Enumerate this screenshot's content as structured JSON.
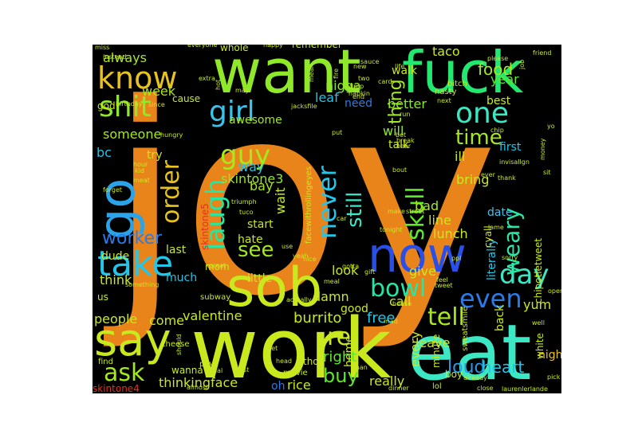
{
  "words": [
    {
      "text": "joy",
      "color": "#e8841a"
    },
    {
      "text": "work",
      "color": "#c9e81e"
    },
    {
      "text": "eat",
      "color": "#3ce8c4"
    },
    {
      "text": "want",
      "color": "#8fe829"
    },
    {
      "text": "fuck",
      "color": "#22e870"
    },
    {
      "text": "sob",
      "color": "#c9e81e"
    },
    {
      "text": "now",
      "color": "#2a4fe8"
    },
    {
      "text": "go",
      "color": "#2aa3e8"
    },
    {
      "text": "say",
      "color": "#c9e81e"
    },
    {
      "text": "take",
      "color": "#22c6e8"
    },
    {
      "text": "know",
      "color": "#e8c21e"
    },
    {
      "text": "shit",
      "color": "#8fe829"
    },
    {
      "text": "girl",
      "color": "#3cc2e8"
    },
    {
      "text": "guy",
      "color": "#a6e81e"
    },
    {
      "text": "laugh",
      "color": "#22e8a4"
    },
    {
      "text": "never",
      "color": "#22c6e8"
    },
    {
      "text": "skull",
      "color": "#5fe829"
    },
    {
      "text": "order",
      "color": "#e8c21e"
    },
    {
      "text": "one",
      "color": "#3ce8c4"
    },
    {
      "text": "day",
      "color": "#3ce8c4"
    },
    {
      "text": "even",
      "color": "#2a7ae8"
    },
    {
      "text": "tell",
      "color": "#a6e81e"
    },
    {
      "text": "bowl",
      "color": "#22e8a4"
    },
    {
      "text": "ask",
      "color": "#a6e81e"
    },
    {
      "text": "weary",
      "color": "#2ae8a4"
    },
    {
      "text": "time",
      "color": "#a6e81e"
    },
    {
      "text": "see",
      "color": "#a6e81e"
    },
    {
      "text": "still",
      "color": "#3ce8c4"
    },
    {
      "text": "thing",
      "color": "#a6e81e"
    },
    {
      "text": "worker",
      "color": "#2a7ae8"
    },
    {
      "text": "food",
      "color": "#a6e81e"
    },
    {
      "text": "taco",
      "color": "#c9e81e"
    },
    {
      "text": "loud",
      "color": "#2a9ae8"
    },
    {
      "text": "heart",
      "color": "#22c6e8"
    },
    {
      "text": "burrito",
      "color": "#c9e81e"
    },
    {
      "text": "re",
      "color": "#c9e81e"
    },
    {
      "text": "buy",
      "color": "#5fe829"
    },
    {
      "text": "right",
      "color": "#5fe829"
    },
    {
      "text": "free",
      "color": "#22c6e8"
    },
    {
      "text": "always",
      "color": "#a6e81e"
    },
    {
      "text": "week",
      "color": "#a6e81e"
    },
    {
      "text": "nigga",
      "color": "#8fe829"
    },
    {
      "text": "leaf",
      "color": "#22c6e8"
    },
    {
      "text": "need",
      "color": "#2a7ae8"
    },
    {
      "text": "better",
      "color": "#8fe829"
    },
    {
      "text": "awesome",
      "color": "#a6e81e"
    },
    {
      "text": "will",
      "color": "#8fe829"
    },
    {
      "text": "someone",
      "color": "#a6e81e"
    },
    {
      "text": "bc",
      "color": "#22c6e8"
    },
    {
      "text": "skintone3",
      "color": "#8fe829"
    },
    {
      "text": "way",
      "color": "#22c6e8"
    },
    {
      "text": "bay",
      "color": "#a6e81e"
    },
    {
      "text": "wait",
      "color": "#c9e81e"
    },
    {
      "text": "bad",
      "color": "#a6e81e"
    },
    {
      "text": "line",
      "color": "#c9e81e"
    },
    {
      "text": "lunch",
      "color": "#c9e81e"
    },
    {
      "text": "ill",
      "color": "#c9e81e"
    },
    {
      "text": "bring",
      "color": "#c9e81e"
    },
    {
      "text": "year",
      "color": "#5fe829"
    },
    {
      "text": "best",
      "color": "#c9e81e"
    },
    {
      "text": "first",
      "color": "#22c6e8"
    },
    {
      "text": "date",
      "color": "#3cc2e8"
    },
    {
      "text": "literally",
      "color": "#22c6e8"
    },
    {
      "text": "hate",
      "color": "#c9e81e"
    },
    {
      "text": "dude",
      "color": "#c9e81e"
    },
    {
      "text": "last",
      "color": "#c9e81e"
    },
    {
      "text": "mom",
      "color": "#c9e81e"
    },
    {
      "text": "think",
      "color": "#c9e81e"
    },
    {
      "text": "much",
      "color": "#22c6e8"
    },
    {
      "text": "little",
      "color": "#c9e81e"
    },
    {
      "text": "start",
      "color": "#c9e81e"
    },
    {
      "text": "look",
      "color": "#c9e81e"
    },
    {
      "text": "give",
      "color": "#c9e81e"
    },
    {
      "text": "call",
      "color": "#c9e81e"
    },
    {
      "text": "good",
      "color": "#c9e81e"
    },
    {
      "text": "damn",
      "color": "#c9e81e"
    },
    {
      "text": "valentine",
      "color": "#c9e81e"
    },
    {
      "text": "people",
      "color": "#c9e81e"
    },
    {
      "text": "come",
      "color": "#c9e81e"
    },
    {
      "text": "thinkingface",
      "color": "#c9e81e"
    },
    {
      "text": "rice",
      "color": "#c9e81e"
    },
    {
      "text": "oh",
      "color": "#2a7ae8"
    },
    {
      "text": "skintone4",
      "color": "#e8301e"
    },
    {
      "text": "leave",
      "color": "#c9e81e"
    },
    {
      "text": "every",
      "color": "#c9e81e"
    },
    {
      "text": "really",
      "color": "#c9e81e"
    },
    {
      "text": "yum",
      "color": "#c9e81e"
    },
    {
      "text": "back",
      "color": "#c9e81e"
    },
    {
      "text": "night",
      "color": "#e8c21e"
    },
    {
      "text": "white",
      "color": "#c9e81e"
    },
    {
      "text": "home",
      "color": "#c9e81e"
    },
    {
      "text": "boy",
      "color": "#c9e81e"
    },
    {
      "text": "walk",
      "color": "#c9e81e"
    },
    {
      "text": "remember",
      "color": "#c9e81e"
    },
    {
      "text": "whole",
      "color": "#c9e81e"
    },
    {
      "text": "talk",
      "color": "#c9e81e"
    },
    {
      "text": "cause",
      "color": "#c9e81e"
    },
    {
      "text": "god",
      "color": "#c9e81e"
    },
    {
      "text": "try",
      "color": "#c9e81e"
    },
    {
      "text": "skintone5",
      "color": "#e8301e"
    },
    {
      "text": "facewithrollingeyes",
      "color": "#c9e81e"
    },
    {
      "text": "us",
      "color": "#c9e81e"
    },
    {
      "text": "tho",
      "color": "#c9e81e"
    },
    {
      "text": "minute",
      "color": "#c9e81e"
    },
    {
      "text": "cyall",
      "color": "#c9e81e"
    },
    {
      "text": "chipotletweet",
      "color": "#c9e81e"
    },
    {
      "text": "wanna",
      "color": "#c9e81e"
    },
    {
      "text": "pay",
      "color": "#c9e81e"
    },
    {
      "text": "subway",
      "color": "#c9e81e"
    },
    {
      "text": "find",
      "color": "#c9e81e"
    },
    {
      "text": "cheese",
      "color": "#c9e81e"
    },
    {
      "text": "movie",
      "color": "#c9e81e"
    },
    {
      "text": "lol",
      "color": "#c9e81e"
    },
    {
      "text": "sweatsmile",
      "color": "#c9e81e"
    },
    {
      "text": "bitch",
      "color": "#c9e81e"
    },
    {
      "text": "nasty",
      "color": "#c9e81e"
    },
    {
      "text": "miss",
      "color": "#c9e81e"
    },
    {
      "text": "instead",
      "color": "#c9e81e"
    },
    {
      "text": "everyone",
      "color": "#c9e81e"
    },
    {
      "text": "happy",
      "color": "#c9e81e"
    },
    {
      "text": "card",
      "color": "#c9e81e"
    },
    {
      "text": "extra",
      "color": "#c9e81e"
    },
    {
      "text": "birthday",
      "color": "#c9e81e"
    },
    {
      "text": "since",
      "color": "#c9e81e"
    },
    {
      "text": "hungry",
      "color": "#c9e81e"
    },
    {
      "text": "hour",
      "color": "#c9e81e"
    },
    {
      "text": "kid",
      "color": "#c9e81e"
    },
    {
      "text": "meat",
      "color": "#c9e81e"
    },
    {
      "text": "forget",
      "color": "#c9e81e"
    },
    {
      "text": "triumph",
      "color": "#c9e81e"
    },
    {
      "text": "friend",
      "color": "#c9e81e"
    },
    {
      "text": "please",
      "color": "#c9e81e"
    },
    {
      "text": "two",
      "color": "#c9e81e"
    },
    {
      "text": "life",
      "color": "#c9e81e"
    },
    {
      "text": "drop",
      "color": "#c9e81e"
    },
    {
      "text": "napkin",
      "color": "#c9e81e"
    },
    {
      "text": "next",
      "color": "#c9e81e"
    },
    {
      "text": "run",
      "color": "#c9e81e"
    },
    {
      "text": "put",
      "color": "#c9e81e"
    },
    {
      "text": "bout",
      "color": "#c9e81e"
    },
    {
      "text": "bet",
      "color": "#c9e81e"
    },
    {
      "text": "break",
      "color": "#c9e81e"
    },
    {
      "text": "chip",
      "color": "#c9e81e"
    },
    {
      "text": "thank",
      "color": "#c9e81e"
    },
    {
      "text": "ever",
      "color": "#c9e81e"
    },
    {
      "text": "sit",
      "color": "#c9e81e"
    },
    {
      "text": "money",
      "color": "#c9e81e"
    },
    {
      "text": "yo",
      "color": "#c9e81e"
    },
    {
      "text": "beer",
      "color": "#c9e81e"
    },
    {
      "text": "make",
      "color": "#c9e81e"
    },
    {
      "text": "street",
      "color": "#c9e81e"
    },
    {
      "text": "tonight",
      "color": "#c9e81e"
    },
    {
      "text": "car",
      "color": "#c9e81e"
    },
    {
      "text": "meal",
      "color": "#c9e81e"
    },
    {
      "text": "yeah",
      "color": "#c9e81e"
    },
    {
      "text": "gotta",
      "color": "#c9e81e"
    },
    {
      "text": "feel",
      "color": "#c9e81e"
    },
    {
      "text": "ppl",
      "color": "#c9e81e"
    },
    {
      "text": "tweet",
      "color": "#c9e81e"
    },
    {
      "text": "house",
      "color": "#c9e81e"
    },
    {
      "text": "mad",
      "color": "#c9e81e"
    },
    {
      "text": "actually",
      "color": "#c9e81e"
    },
    {
      "text": "let",
      "color": "#c9e81e"
    },
    {
      "text": "head",
      "color": "#c9e81e"
    },
    {
      "text": "man",
      "color": "#c9e81e"
    },
    {
      "text": "dinner",
      "color": "#c9e81e"
    },
    {
      "text": "close",
      "color": "#c9e81e"
    },
    {
      "text": "laurenlerlande",
      "color": "#c9e81e"
    },
    {
      "text": "pick",
      "color": "#c9e81e"
    },
    {
      "text": "almost",
      "color": "#c9e81e"
    },
    {
      "text": "real",
      "color": "#c9e81e"
    },
    {
      "text": "should",
      "color": "#c9e81e"
    },
    {
      "text": "1st",
      "color": "#c9e81e"
    },
    {
      "text": "great",
      "color": "#c9e81e"
    },
    {
      "text": "use",
      "color": "#c9e81e"
    },
    {
      "text": "something",
      "color": "#c9e81e"
    },
    {
      "text": "invisallgn",
      "color": "#c9e81e"
    },
    {
      "text": "sauce",
      "color": "#c9e81e"
    },
    {
      "text": "new",
      "color": "#c9e81e"
    },
    {
      "text": "lame",
      "color": "#c9e81e"
    },
    {
      "text": "mean",
      "color": "#c9e81e"
    },
    {
      "text": "open",
      "color": "#c9e81e"
    },
    {
      "text": "jacksfile",
      "color": "#c9e81e"
    },
    {
      "text": "hot",
      "color": "#c9e81e"
    },
    {
      "text": "may",
      "color": "#c9e81e"
    },
    {
      "text": "fire",
      "color": "#c9e81e"
    },
    {
      "text": "end",
      "color": "#c9e81e"
    },
    {
      "text": "job",
      "color": "#c9e81e"
    },
    {
      "text": "tuco",
      "color": "#c9e81e"
    },
    {
      "text": "already",
      "color": "#c9e81e"
    },
    {
      "text": "well",
      "color": "#c9e81e"
    },
    {
      "text": "gift",
      "color": "#c9e81e"
    },
    {
      "text": "nice",
      "color": "#c9e81e"
    },
    {
      "text": "sorry",
      "color": "#c9e81e"
    }
  ]
}
